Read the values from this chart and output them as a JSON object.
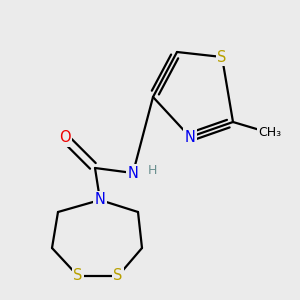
{
  "bg_color": "#ebebeb",
  "atom_colors": {
    "S": "#b8a000",
    "N": "#0000ee",
    "O": "#ee0000",
    "C": "#000000",
    "H": "#6b9090"
  },
  "bond_color": "#000000",
  "bond_width": 1.6
}
